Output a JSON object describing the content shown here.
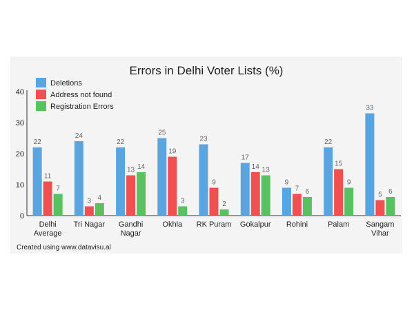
{
  "chart_data": {
    "type": "bar",
    "title": "Errors in Delhi Voter Lists (%)",
    "categories": [
      [
        "Delhi",
        "Average"
      ],
      [
        "Tri Nagar"
      ],
      [
        "Gandhi",
        "Nagar"
      ],
      [
        "Okhla"
      ],
      [
        "RK Puram"
      ],
      [
        "Gokalpur"
      ],
      [
        "Rohini"
      ],
      [
        "Palam"
      ],
      [
        "Sangam",
        "Vihar"
      ]
    ],
    "series": [
      {
        "name": "Deletions",
        "color": "#5aa5e0",
        "values": [
          22,
          24,
          22,
          25,
          23,
          17,
          9,
          22,
          33
        ]
      },
      {
        "name": "Address not found",
        "color": "#f0504f",
        "values": [
          11,
          3,
          13,
          19,
          9,
          14,
          7,
          15,
          5
        ]
      },
      {
        "name": "Registration Errors",
        "color": "#58c160",
        "values": [
          7,
          4,
          14,
          3,
          2,
          13,
          6,
          9,
          6
        ]
      }
    ],
    "yticks": [
      0,
      10,
      20,
      30,
      40
    ],
    "ylim": [
      0,
      40
    ],
    "legend_position": "top-left",
    "xlabel": "",
    "ylabel": ""
  },
  "footer": {
    "credit": "Created using www.datavisu.al"
  }
}
